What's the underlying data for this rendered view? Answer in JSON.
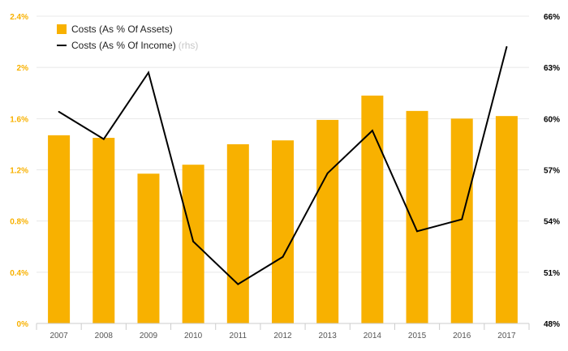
{
  "chart_data": {
    "type": "bar",
    "categories": [
      "2007",
      "2008",
      "2009",
      "2010",
      "2011",
      "2012",
      "2013",
      "2014",
      "2015",
      "2016",
      "2017"
    ],
    "series": [
      {
        "name": "Costs (As % Of Assets)",
        "type": "bar",
        "axis": "left",
        "values": [
          1.47,
          1.45,
          1.17,
          1.24,
          1.4,
          1.43,
          1.59,
          1.78,
          1.66,
          1.6,
          1.62
        ]
      },
      {
        "name": "Costs (As % Of Income)",
        "type": "line",
        "axis": "right",
        "values": [
          60.4,
          58.8,
          62.7,
          52.8,
          50.3,
          51.9,
          56.8,
          59.3,
          53.4,
          54.1,
          64.2
        ]
      }
    ],
    "legend_suffix": "(rhs)",
    "left_axis": {
      "ylim": [
        0,
        2.4
      ],
      "ticks": [
        "0%",
        "0.4%",
        "0.8%",
        "1.2%",
        "1.6%",
        "2%",
        "2.4%"
      ],
      "tick_values": [
        0,
        0.4,
        0.8,
        1.2,
        1.6,
        2.0,
        2.4
      ]
    },
    "right_axis": {
      "ylim": [
        48,
        66
      ],
      "ticks": [
        "48%",
        "51%",
        "54%",
        "57%",
        "60%",
        "63%",
        "66%"
      ],
      "tick_values": [
        48,
        51,
        54,
        57,
        60,
        63,
        66
      ]
    },
    "grid": true,
    "legend_position": "top-left",
    "colors": {
      "bar": "#F8B100",
      "line": "#000000",
      "left_tick": "#F8B100",
      "right_tick": "#000000",
      "x_tick": "#555555",
      "grid": "#e8e8e8",
      "axis": "#cccccc",
      "legend_suffix": "#c7c7c7"
    }
  }
}
